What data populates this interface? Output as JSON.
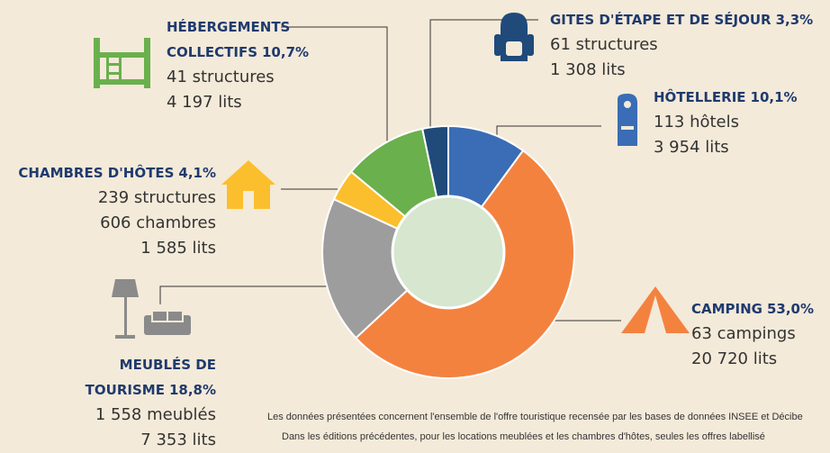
{
  "chart_data": {
    "type": "pie",
    "donut": true,
    "categories": [
      "HÔTELLERIE",
      "CAMPING",
      "MEUBLÉS DE TOURISME",
      "CHAMBRES D'HÔTES",
      "HÉBERGEMENTS COLLECTIFS",
      "GITES D'ÉTAPE ET DE SÉJOUR"
    ],
    "values": [
      10.1,
      53.0,
      18.8,
      4.1,
      10.7,
      3.3
    ],
    "value_labels": [
      "10,1%",
      "53,0%",
      "18,8%",
      "4,1%",
      "10,7%",
      "3,3%"
    ],
    "colors": [
      "#3a6db5",
      "#f4823f",
      "#9d9d9d",
      "#fbbf2d",
      "#6ab04d",
      "#1f4a7a"
    ],
    "details": [
      [
        "113 hôtels",
        "3 954 lits"
      ],
      [
        "63 campings",
        "20 720 lits"
      ],
      [
        "1 558 meublés",
        "7 353 lits"
      ],
      [
        "239 structures",
        "606 chambres",
        "1 585 lits"
      ],
      [
        "41 structures",
        "4 197 lits"
      ],
      [
        "61 structures",
        "1 308 lits"
      ]
    ],
    "notes": [
      "Les données présentées concernent l'ensemble de l'offre touristique recensée par les bases de données INSEE et Décibe",
      "Dans les éditions précédentes, pour les locations meublées et les chambres d'hôtes, seules les offres labellisé"
    ]
  }
}
